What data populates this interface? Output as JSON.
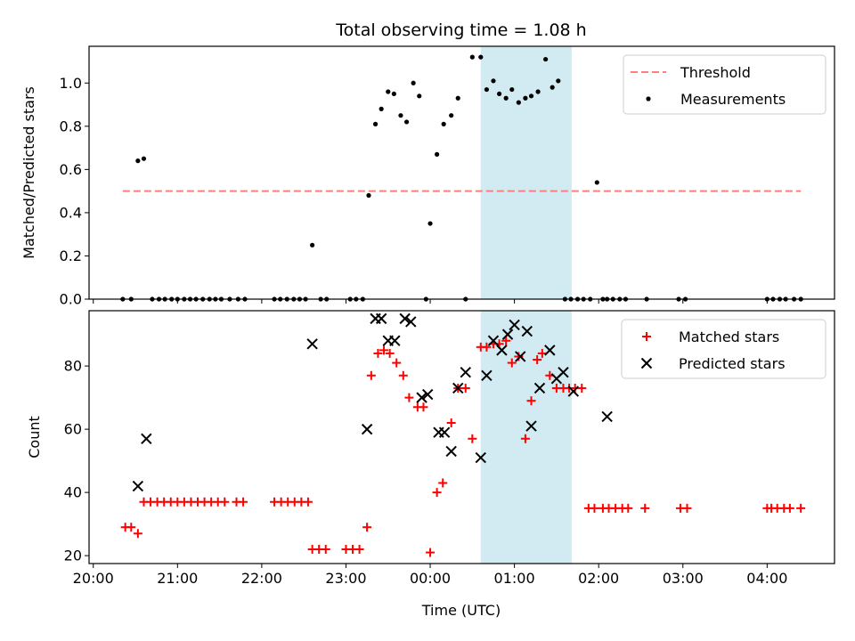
{
  "chart_data": {
    "type": "scatter",
    "title": "Total observing time = 1.08 h",
    "xlabel": "Time (UTC)",
    "x_unit": "hours since 20:00 UTC",
    "xticks": [
      {
        "value": 0,
        "label": "20:00"
      },
      {
        "value": 1,
        "label": "21:00"
      },
      {
        "value": 2,
        "label": "22:00"
      },
      {
        "value": 3,
        "label": "23:00"
      },
      {
        "value": 4,
        "label": "00:00"
      },
      {
        "value": 5,
        "label": "01:00"
      },
      {
        "value": 6,
        "label": "02:00"
      },
      {
        "value": 7,
        "label": "03:00"
      },
      {
        "value": 8,
        "label": "04:00"
      }
    ],
    "xlim": [
      -0.05,
      8.8
    ],
    "highlight_span": [
      4.6,
      5.68
    ],
    "highlight_color": "#add8e6",
    "panels": [
      {
        "ylabel": "Matched/Predicted stars",
        "ylim": [
          0,
          1.17
        ],
        "yticks": [
          {
            "value": 0.0,
            "label": "0.0"
          },
          {
            "value": 0.2,
            "label": "0.2"
          },
          {
            "value": 0.4,
            "label": "0.4"
          },
          {
            "value": 0.6,
            "label": "0.6"
          },
          {
            "value": 0.8,
            "label": "0.8"
          },
          {
            "value": 1.0,
            "label": "1.0"
          }
        ],
        "legend_position": "top-right",
        "series": [
          {
            "name": "Threshold",
            "style": "dashed-line",
            "color": "#ff7f7f",
            "x": [
              0.35,
              8.4
            ],
            "y": [
              0.5,
              0.5
            ]
          },
          {
            "name": "Measurements",
            "style": "dot",
            "color": "#000000",
            "x": [
              0.35,
              0.45,
              0.53,
              0.6,
              0.7,
              0.78,
              0.85,
              0.93,
              1.0,
              1.08,
              1.15,
              1.22,
              1.3,
              1.38,
              1.45,
              1.52,
              1.62,
              1.72,
              1.8,
              2.15,
              2.22,
              2.3,
              2.38,
              2.45,
              2.52,
              2.6,
              2.7,
              2.77,
              3.05,
              3.12,
              3.2,
              3.27,
              3.35,
              3.42,
              3.5,
              3.57,
              3.65,
              3.72,
              3.8,
              3.87,
              3.95,
              4.0,
              4.08,
              4.16,
              4.25,
              4.33,
              4.42,
              4.5,
              4.6,
              4.67,
              4.75,
              4.82,
              4.9,
              4.97,
              5.05,
              5.13,
              5.2,
              5.28,
              5.37,
              5.45,
              5.52,
              5.6,
              5.67,
              5.75,
              5.82,
              5.9,
              5.98,
              6.05,
              6.1,
              6.17,
              6.25,
              6.32,
              6.57,
              6.95,
              7.03,
              8.0,
              8.07,
              8.15,
              8.22,
              8.32,
              8.4
            ],
            "y": [
              0,
              0,
              0.64,
              0.65,
              0,
              0,
              0,
              0,
              0,
              0,
              0,
              0,
              0,
              0,
              0,
              0,
              0,
              0,
              0,
              0,
              0,
              0,
              0,
              0,
              0,
              0.25,
              0,
              0,
              0,
              0,
              0,
              0.48,
              0.81,
              0.88,
              0.96,
              0.95,
              0.85,
              0.82,
              1.0,
              0.94,
              0,
              0.35,
              0.67,
              0.81,
              0.85,
              0.93,
              0,
              1.12,
              1.12,
              0.97,
              1.01,
              0.95,
              0.93,
              0.97,
              0.91,
              0.93,
              0.94,
              0.96,
              1.11,
              0.98,
              1.01,
              0,
              0,
              0,
              0,
              0,
              0.54,
              0,
              0,
              0,
              0,
              0,
              0,
              0,
              0,
              0,
              0,
              0,
              0,
              0,
              0
            ]
          }
        ]
      },
      {
        "ylabel": "Count",
        "ylim": [
          17.5,
          97.5
        ],
        "yticks": [
          {
            "value": 20,
            "label": "20"
          },
          {
            "value": 40,
            "label": "40"
          },
          {
            "value": 60,
            "label": "60"
          },
          {
            "value": 80,
            "label": "80"
          }
        ],
        "legend_position": "top-right",
        "series": [
          {
            "name": "Matched stars",
            "style": "plus",
            "color": "#ff0000",
            "x": [
              0.38,
              0.45,
              0.53,
              0.6,
              0.68,
              0.76,
              0.84,
              0.92,
              1.0,
              1.08,
              1.16,
              1.24,
              1.32,
              1.4,
              1.48,
              1.56,
              1.7,
              1.78,
              2.15,
              2.23,
              2.31,
              2.39,
              2.47,
              2.55,
              2.6,
              2.68,
              2.76,
              3.0,
              3.08,
              3.16,
              3.25,
              3.3,
              3.38,
              3.45,
              3.52,
              3.6,
              3.68,
              3.75,
              3.85,
              3.92,
              4.0,
              4.08,
              4.15,
              4.25,
              4.33,
              4.42,
              4.5,
              4.6,
              4.67,
              4.75,
              4.82,
              4.9,
              4.97,
              5.05,
              5.13,
              5.2,
              5.27,
              5.33,
              5.42,
              5.5,
              5.58,
              5.65,
              5.72,
              5.8,
              5.88,
              5.95,
              6.05,
              6.12,
              6.2,
              6.28,
              6.35,
              6.55,
              6.97,
              7.05,
              8.0,
              8.05,
              8.12,
              8.2,
              8.27,
              8.4
            ],
            "y": [
              29,
              29,
              27,
              37,
              37,
              37,
              37,
              37,
              37,
              37,
              37,
              37,
              37,
              37,
              37,
              37,
              37,
              37,
              37,
              37,
              37,
              37,
              37,
              37,
              22,
              22,
              22,
              22,
              22,
              22,
              29,
              77,
              84,
              85,
              84,
              81,
              77,
              70,
              67,
              67,
              21,
              40,
              43,
              62,
              73,
              73,
              57,
              86,
              86,
              87,
              87,
              88,
              81,
              83,
              57,
              69,
              82,
              84,
              77,
              73,
              73,
              73,
              73,
              73,
              35,
              35,
              35,
              35,
              35,
              35,
              35,
              35,
              35,
              35,
              35,
              35,
              35,
              35,
              35,
              35
            ],
            "_note_x": "x and y arrays aligned"
          },
          {
            "name": "Predicted stars",
            "style": "x",
            "color": "#000000",
            "x": [
              0.53,
              0.63,
              2.6,
              3.25,
              3.35,
              3.42,
              3.5,
              3.58,
              3.7,
              3.77,
              3.9,
              3.97,
              4.1,
              4.17,
              4.25,
              4.33,
              4.42,
              4.6,
              4.67,
              4.75,
              4.85,
              4.92,
              5.0,
              5.07,
              5.15,
              5.2,
              5.3,
              5.42,
              5.5,
              5.58,
              5.7,
              6.1
            ],
            "y": [
              42,
              57,
              87,
              60,
              95,
              95,
              88,
              88,
              95,
              94,
              70,
              71,
              59,
              59,
              53,
              73,
              78,
              51,
              77,
              88,
              85,
              90,
              93,
              83,
              91,
              61,
              73,
              85,
              76,
              78,
              72,
              64
            ]
          }
        ]
      }
    ]
  }
}
